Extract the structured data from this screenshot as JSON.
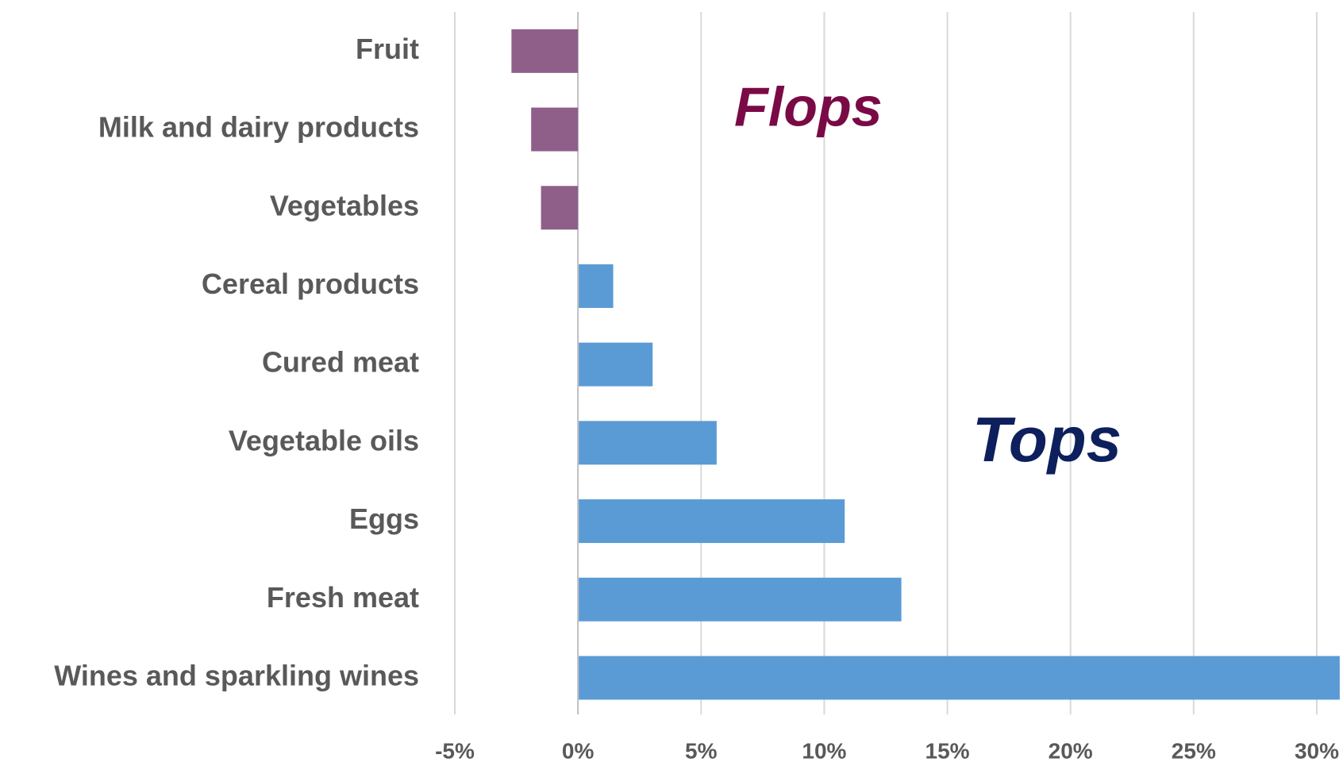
{
  "chart_data": {
    "type": "hbar",
    "categories": [
      "Fruit",
      "Milk and dairy products",
      "Vegetables",
      "Cereal products",
      "Cured meat",
      "Vegetable oils",
      "Eggs",
      "Fresh meat",
      "Wines and sparkling wines"
    ],
    "values": [
      -2.7,
      -1.9,
      -1.5,
      1.4,
      3.0,
      5.6,
      10.8,
      13.1,
      30.9
    ],
    "color": "#5b9bd5",
    "negative_color": "#8f5f8a",
    "xlim": [
      -5,
      31
    ],
    "xticks": [
      {
        "value": -5,
        "label": "-5%"
      },
      {
        "value": 0,
        "label": "0%"
      },
      {
        "value": 5,
        "label": "5%"
      },
      {
        "value": 10,
        "label": "10%"
      },
      {
        "value": 15,
        "label": "15%"
      },
      {
        "value": 20,
        "label": "20%"
      },
      {
        "value": 25,
        "label": "25%"
      },
      {
        "value": 30,
        "label": "30%"
      }
    ],
    "grid": true,
    "annotations": [
      {
        "text": "Flops",
        "color": "#7a0a45"
      },
      {
        "text": "Tops",
        "color": "#0d1f5c"
      }
    ]
  }
}
